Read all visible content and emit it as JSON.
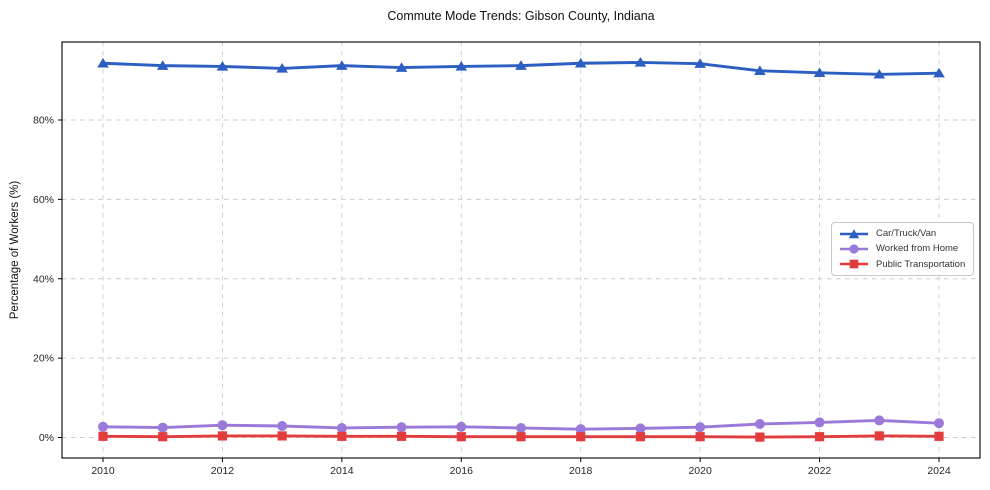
{
  "chart_data": {
    "type": "line",
    "title": "Commute Mode Trends: Gibson County, Indiana",
    "xlabel": "",
    "ylabel": "Percentage of Workers (%)",
    "x": [
      2010,
      2011,
      2012,
      2013,
      2014,
      2015,
      2016,
      2017,
      2018,
      2019,
      2020,
      2021,
      2022,
      2023,
      2024
    ],
    "x_tick_labels": [
      "2010",
      "2012",
      "2014",
      "2016",
      "2018",
      "2020",
      "2022",
      "2024"
    ],
    "x_ticks": [
      2010,
      2012,
      2014,
      2016,
      2018,
      2020,
      2022,
      2024
    ],
    "y_ticks": [
      0,
      20,
      40,
      60,
      80
    ],
    "y_tick_labels": [
      "0%",
      "20%",
      "40%",
      "60%",
      "80%"
    ],
    "ylim": [
      -5,
      100
    ],
    "grid": true,
    "grid_style": "dashed",
    "legend_position": "center right",
    "series": [
      {
        "name": "Car/Truck/Van",
        "color": "#2d5fc2",
        "marker": "triangle",
        "values": [
          94.3,
          93.7,
          93.5,
          93.0,
          93.7,
          93.2,
          93.5,
          93.7,
          94.3,
          94.5,
          94.2,
          92.4,
          91.9,
          91.5,
          91.8
        ]
      },
      {
        "name": "Worked from Home",
        "color": "#9b79d8",
        "marker": "circle",
        "values": [
          2.7,
          2.5,
          3.1,
          2.9,
          2.4,
          2.6,
          2.7,
          2.4,
          2.1,
          2.3,
          2.6,
          3.4,
          3.8,
          4.3,
          3.6
        ]
      },
      {
        "name": "Public Transportation",
        "color": "#e23c3c",
        "marker": "square",
        "values": [
          0.3,
          0.2,
          0.4,
          0.4,
          0.3,
          0.3,
          0.2,
          0.2,
          0.2,
          0.2,
          0.2,
          0.1,
          0.2,
          0.4,
          0.3
        ]
      }
    ]
  }
}
